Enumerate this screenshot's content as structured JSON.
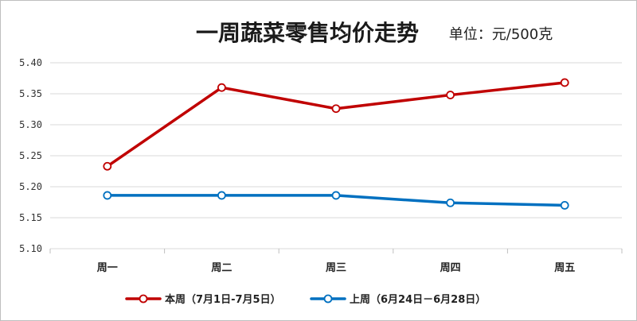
{
  "chart_data": {
    "type": "line",
    "title": "一周蔬菜零售均价走势",
    "unit_label": "单位：元/500克",
    "categories": [
      "周一",
      "周二",
      "周三",
      "周四",
      "周五"
    ],
    "y_ticks": [
      "5.40",
      "5.35",
      "5.30",
      "5.25",
      "5.20",
      "5.15",
      "5.10"
    ],
    "ylim": [
      5.1,
      5.4
    ],
    "grid": true,
    "legend_position": "bottom",
    "series": [
      {
        "name": "本周（7月1日-7月5日）",
        "color": "#c00000",
        "values": [
          5.233,
          5.36,
          5.326,
          5.348,
          5.368
        ]
      },
      {
        "name": "上周（6月24日－6月28日）",
        "color": "#0070c0",
        "values": [
          5.186,
          5.186,
          5.186,
          5.174,
          5.17
        ]
      }
    ]
  }
}
